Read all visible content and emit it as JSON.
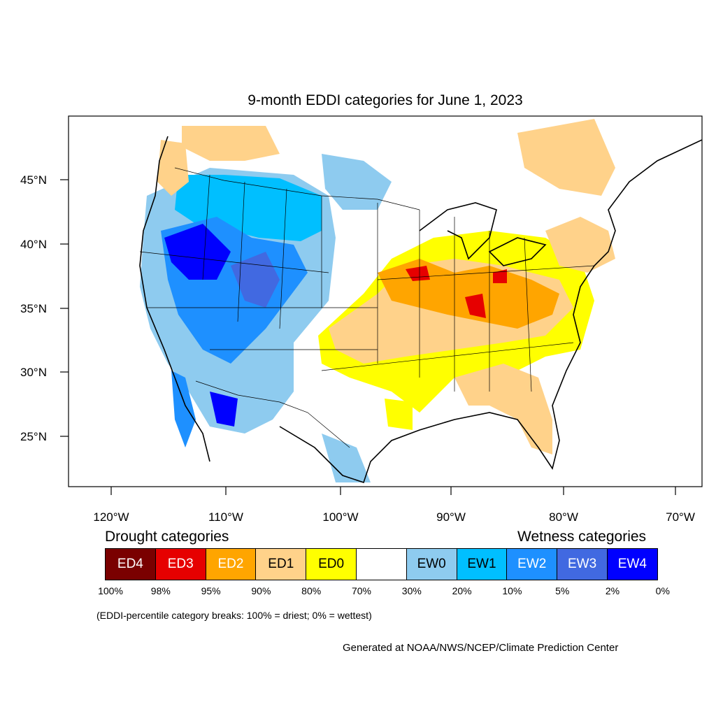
{
  "map": {
    "title": "9-month EDDI categories for June 1, 2023",
    "lat_labels": [
      "45°N",
      "40°N",
      "35°N",
      "30°N",
      "25°N"
    ],
    "lon_labels": [
      "120°W",
      "110°W",
      "100°W",
      "90°W",
      "80°W",
      "70°W"
    ],
    "regions": [
      {
        "name": "pacific-northwest-wet",
        "category": "EW1"
      },
      {
        "name": "great-basin-very-wet",
        "category": "EW4"
      },
      {
        "name": "southwest-wet",
        "category": "EW2"
      },
      {
        "name": "midwest-drought",
        "category": "ED2"
      },
      {
        "name": "illinois-indiana-severe",
        "category": "ED3"
      },
      {
        "name": "southern-plains-drought",
        "category": "ED1"
      },
      {
        "name": "southeast-drought",
        "category": "ED1"
      },
      {
        "name": "northeast-drought",
        "category": "ED1"
      }
    ]
  },
  "legend": {
    "drought_heading": "Drought categories",
    "wetness_heading": "Wetness categories",
    "categories": [
      {
        "label": "ED4",
        "color": "#7a0000",
        "text_color": "#ffffff"
      },
      {
        "label": "ED3",
        "color": "#e60000",
        "text_color": "#ffffff"
      },
      {
        "label": "ED2",
        "color": "#ffa500",
        "text_color": "#ffffff"
      },
      {
        "label": "ED1",
        "color": "#ffd28a",
        "text_color": "#000000"
      },
      {
        "label": "ED0",
        "color": "#ffff00",
        "text_color": "#000000"
      },
      {
        "label": "",
        "color": "#ffffff",
        "text_color": "#000000"
      },
      {
        "label": "EW0",
        "color": "#8ecbef",
        "text_color": "#000000"
      },
      {
        "label": "EW1",
        "color": "#00bfff",
        "text_color": "#000000"
      },
      {
        "label": "EW2",
        "color": "#1e90ff",
        "text_color": "#ffffff"
      },
      {
        "label": "EW3",
        "color": "#4169e1",
        "text_color": "#ffffff"
      },
      {
        "label": "EW4",
        "color": "#0000ff",
        "text_color": "#ffffff"
      }
    ],
    "percent_breaks": [
      "100%",
      "98%",
      "95%",
      "90%",
      "80%",
      "70%",
      "30%",
      "20%",
      "10%",
      "5%",
      "2%",
      "0%"
    ],
    "note": "(EDDI-percentile category breaks: 100% = driest; 0% = wettest)"
  },
  "credit": "Generated at NOAA/NWS/NCEP/Climate Prediction Center"
}
